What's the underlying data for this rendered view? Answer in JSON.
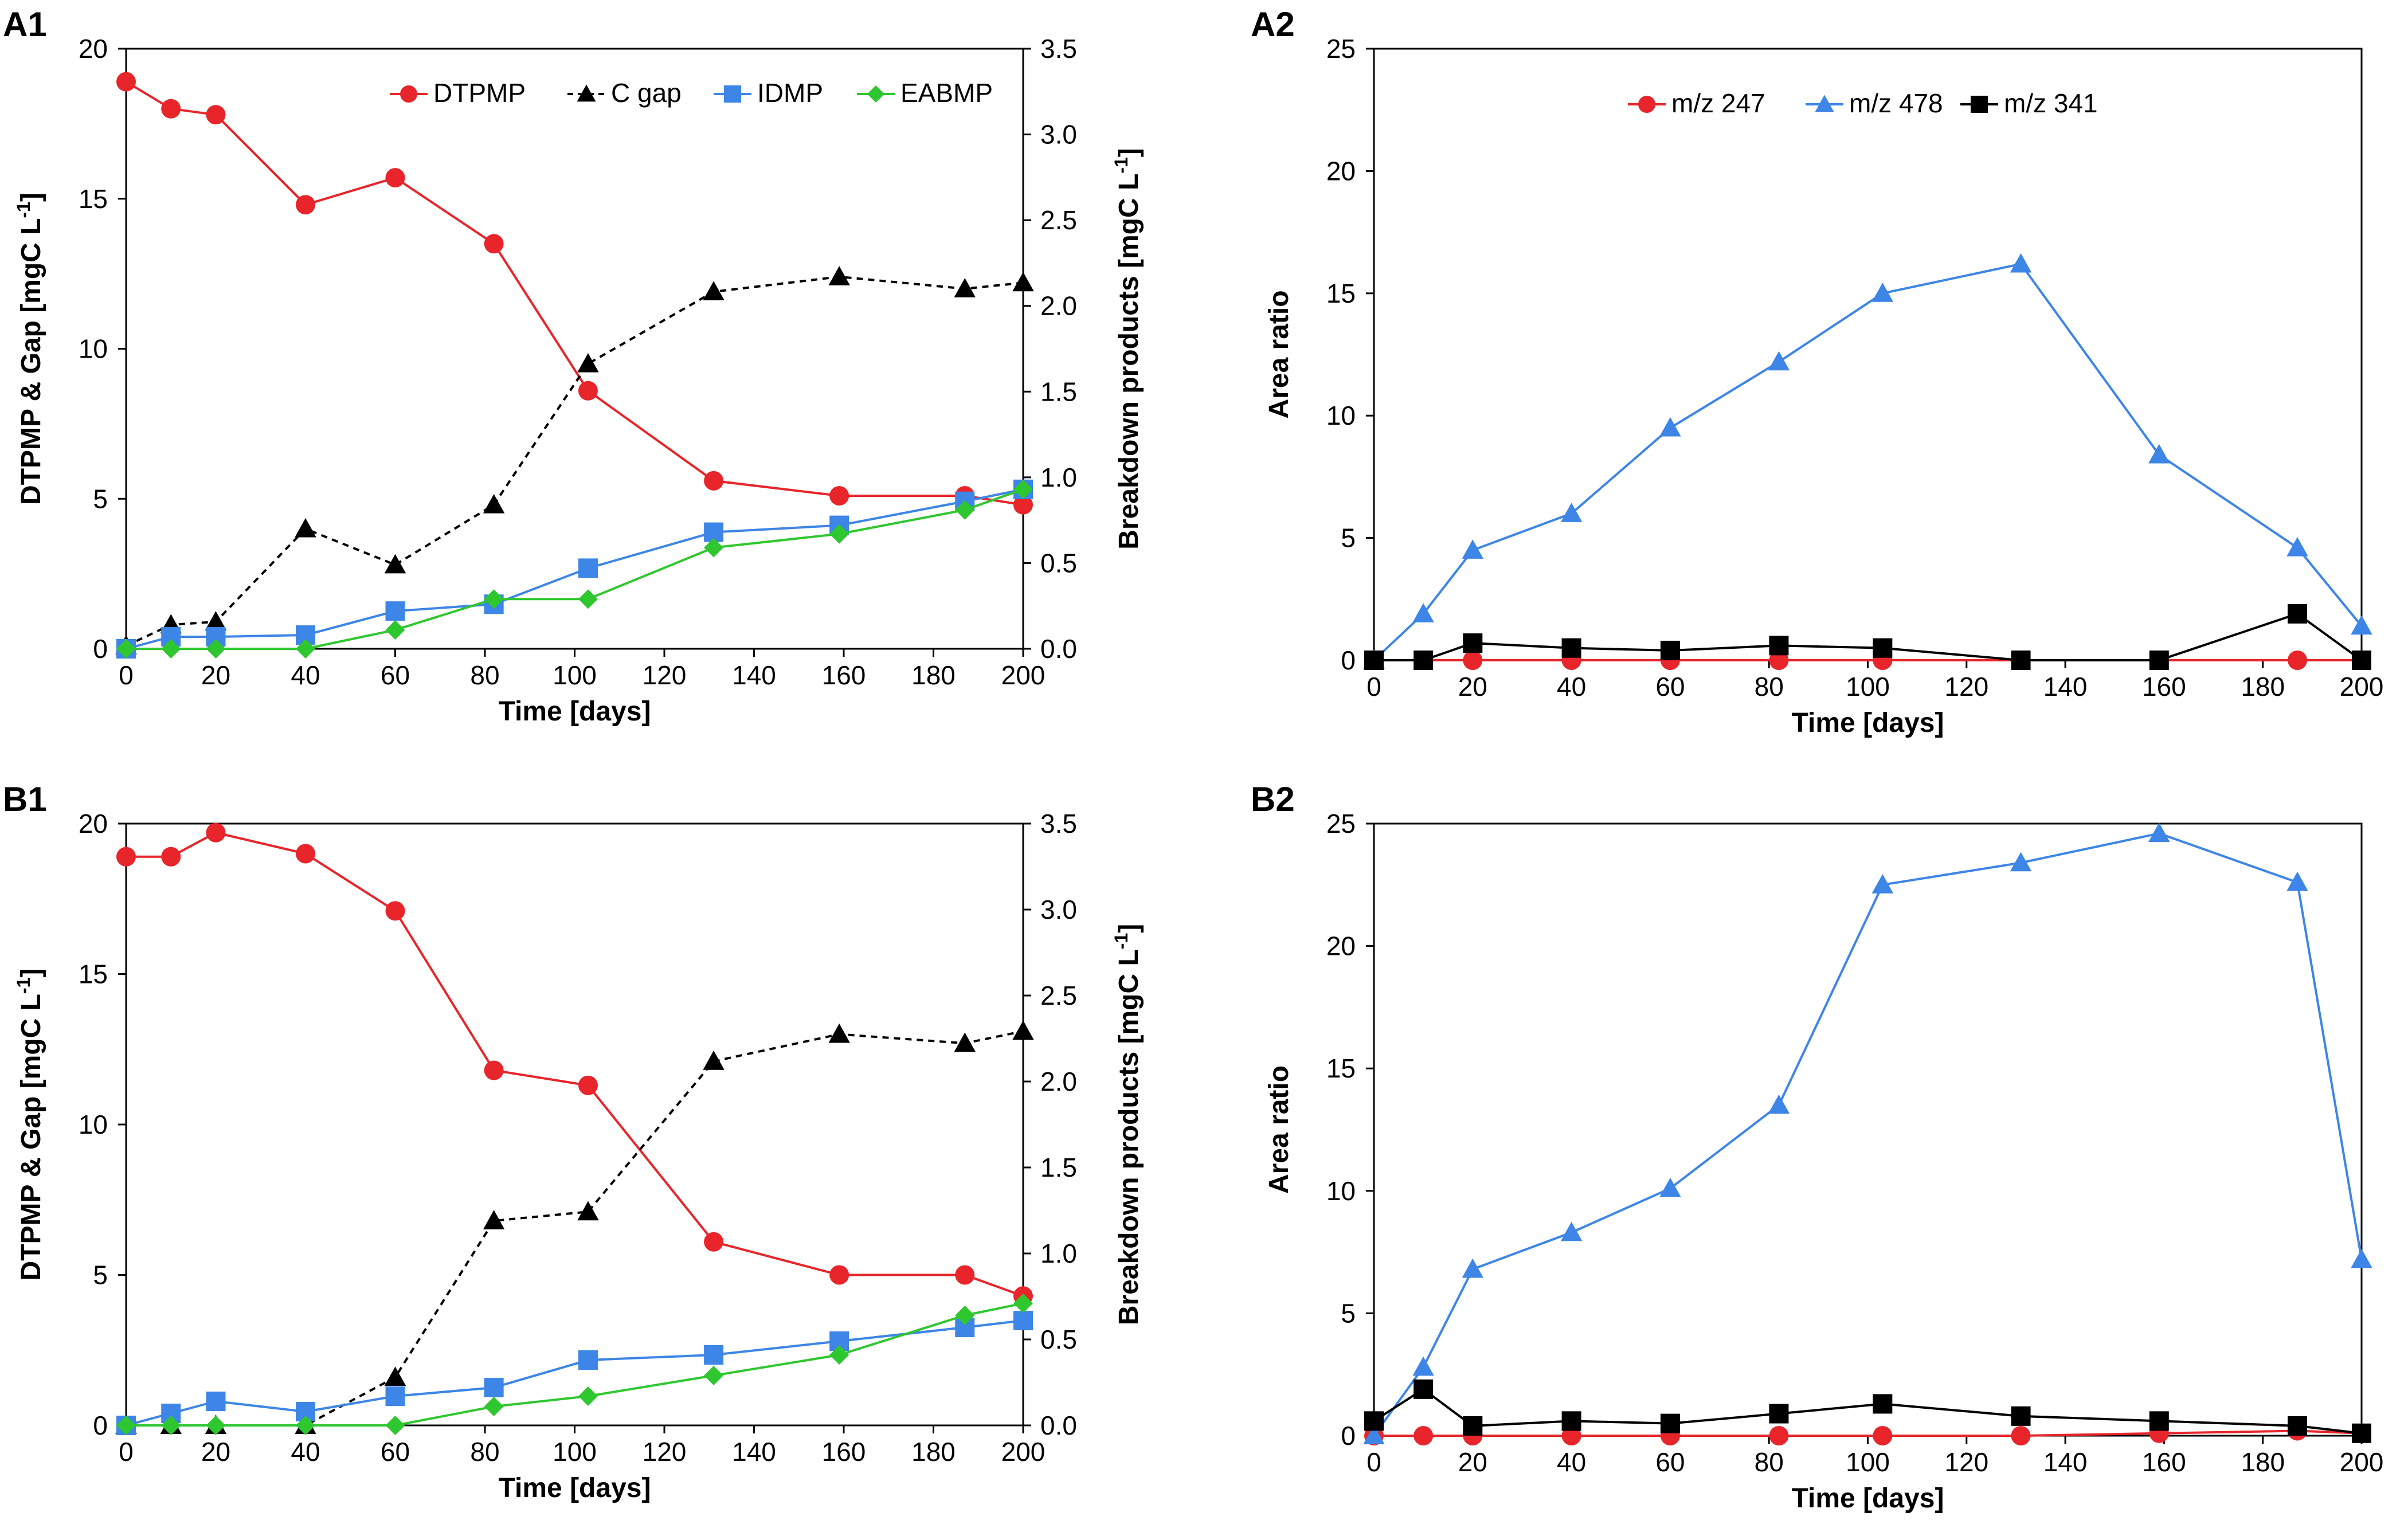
{
  "figure": {
    "panels": [
      "A1",
      "A2",
      "B1",
      "B2"
    ]
  },
  "chart_data": [
    {
      "id": "A1",
      "panel_label": "A1",
      "type": "line",
      "xlabel": "Time [days]",
      "ylabel": "DTPMP & Gap [mgC L",
      "ylabel_sup": "-1",
      "ylabel_close": "]",
      "y2label": "Breakdown products [mgC L",
      "y2label_sup": "-1",
      "y2label_close": "]",
      "xlim": [
        0,
        200
      ],
      "xticks": [
        0,
        20,
        40,
        60,
        80,
        100,
        120,
        140,
        160,
        180,
        200
      ],
      "ylim": [
        0,
        20
      ],
      "yticks": [
        0,
        5,
        10,
        15,
        20
      ],
      "y2lim": [
        0,
        3.5
      ],
      "y2ticks": [
        "0.0",
        "0.5",
        "1.0",
        "1.5",
        "2.0",
        "2.5",
        "3.0",
        "3.5"
      ],
      "legend_position": "top",
      "series": [
        {
          "name": "DTPMP",
          "axis": "left",
          "color": "#e8252a",
          "marker": "circle",
          "dash": false,
          "x": [
            0,
            10,
            20,
            40,
            60,
            82,
            103,
            131,
            159,
            187,
            200
          ],
          "y": [
            18.9,
            18.0,
            17.8,
            14.8,
            15.7,
            13.5,
            8.6,
            5.6,
            5.1,
            5.1,
            4.8
          ]
        },
        {
          "name": "C gap",
          "axis": "left",
          "color": "#000000",
          "marker": "triangle",
          "dash": true,
          "x": [
            0,
            10,
            20,
            40,
            60,
            82,
            103,
            131,
            159,
            187,
            200
          ],
          "y": [
            0.1,
            0.8,
            0.9,
            4.0,
            2.8,
            4.8,
            9.5,
            11.9,
            12.4,
            12.0,
            12.2
          ]
        },
        {
          "name": "IDMP",
          "axis": "right",
          "color": "#3d85e6",
          "marker": "square",
          "dash": false,
          "x": [
            0,
            10,
            20,
            40,
            60,
            82,
            103,
            131,
            159,
            187,
            200
          ],
          "y": [
            0.0,
            0.07,
            0.07,
            0.08,
            0.22,
            0.26,
            0.47,
            0.68,
            0.72,
            0.86,
            0.93
          ]
        },
        {
          "name": "EABMP",
          "axis": "right",
          "color": "#2fc72f",
          "marker": "diamond",
          "dash": false,
          "x": [
            0,
            10,
            20,
            40,
            60,
            82,
            103,
            131,
            159,
            187,
            200
          ],
          "y": [
            0.0,
            0.0,
            0.0,
            0.0,
            0.11,
            0.29,
            0.29,
            0.59,
            0.67,
            0.81,
            0.93
          ]
        }
      ]
    },
    {
      "id": "A2",
      "panel_label": "A2",
      "type": "line",
      "xlabel": "Time [days]",
      "ylabel": "Area ratio",
      "xlim": [
        0,
        200
      ],
      "xticks": [
        0,
        20,
        40,
        60,
        80,
        100,
        120,
        140,
        160,
        180,
        200
      ],
      "ylim": [
        0,
        25
      ],
      "yticks": [
        0,
        5,
        10,
        15,
        20,
        25
      ],
      "legend_position": "top",
      "series": [
        {
          "name": "m/z 247",
          "color": "#e8252a",
          "marker": "circle",
          "x": [
            0,
            10,
            20,
            40,
            60,
            82,
            103,
            131,
            159,
            187,
            200
          ],
          "y": [
            0,
            0,
            0,
            0,
            0,
            0,
            0,
            0,
            0,
            0,
            0
          ]
        },
        {
          "name": "m/z 478",
          "color": "#3d85e6",
          "marker": "triangle",
          "x": [
            0,
            10,
            20,
            40,
            60,
            82,
            103,
            131,
            159,
            187,
            200
          ],
          "y": [
            0,
            1.9,
            4.5,
            6.0,
            9.5,
            12.2,
            15.0,
            16.2,
            8.4,
            4.6,
            1.4
          ]
        },
        {
          "name": "m/z 341",
          "color": "#000000",
          "marker": "square",
          "x": [
            0,
            10,
            20,
            40,
            60,
            82,
            103,
            131,
            159,
            187,
            200
          ],
          "y": [
            0,
            0,
            0.7,
            0.5,
            0.4,
            0.6,
            0.5,
            0,
            0,
            1.9,
            0
          ]
        }
      ]
    },
    {
      "id": "B1",
      "panel_label": "B1",
      "type": "line",
      "xlabel": "Time [days]",
      "ylabel": "DTPMP & Gap [mgC L",
      "ylabel_sup": "-1",
      "ylabel_close": "]",
      "y2label": "Breakdown products [mgC L",
      "y2label_sup": "-1",
      "y2label_close": "]",
      "xlim": [
        0,
        200
      ],
      "xticks": [
        0,
        20,
        40,
        60,
        80,
        100,
        120,
        140,
        160,
        180,
        200
      ],
      "ylim": [
        0,
        20
      ],
      "yticks": [
        0,
        5,
        10,
        15,
        20
      ],
      "y2lim": [
        0,
        3.5
      ],
      "y2ticks": [
        "0.0",
        "0.5",
        "1.0",
        "1.5",
        "2.0",
        "2.5",
        "3.0",
        "3.5"
      ],
      "series": [
        {
          "name": "DTPMP",
          "axis": "left",
          "color": "#e8252a",
          "marker": "circle",
          "dash": false,
          "x": [
            0,
            10,
            20,
            40,
            60,
            82,
            103,
            131,
            159,
            187,
            200
          ],
          "y": [
            18.9,
            18.9,
            19.7,
            19.0,
            17.1,
            11.8,
            11.3,
            6.1,
            5.0,
            5.0,
            4.3
          ]
        },
        {
          "name": "C gap",
          "axis": "left",
          "color": "#000000",
          "marker": "triangle",
          "dash": true,
          "x": [
            0,
            10,
            20,
            40,
            60,
            82,
            103,
            131,
            159,
            187,
            200
          ],
          "y": [
            0.0,
            0.0,
            0.0,
            0.0,
            1.6,
            6.8,
            7.1,
            12.1,
            13.0,
            12.7,
            13.1
          ]
        },
        {
          "name": "IDMP",
          "axis": "right",
          "color": "#3d85e6",
          "marker": "square",
          "dash": false,
          "x": [
            0,
            10,
            20,
            40,
            60,
            82,
            103,
            131,
            159,
            187,
            200
          ],
          "y": [
            0.0,
            0.07,
            0.14,
            0.08,
            0.17,
            0.22,
            0.38,
            0.41,
            0.49,
            0.57,
            0.61
          ]
        },
        {
          "name": "EABMP",
          "axis": "right",
          "color": "#2fc72f",
          "marker": "diamond",
          "dash": false,
          "x": [
            0,
            10,
            20,
            40,
            60,
            82,
            103,
            131,
            159,
            187,
            200
          ],
          "y": [
            0.0,
            0.0,
            0.0,
            0.0,
            0.0,
            0.11,
            0.17,
            0.29,
            0.41,
            0.64,
            0.71
          ]
        }
      ]
    },
    {
      "id": "B2",
      "panel_label": "B2",
      "type": "line",
      "xlabel": "Time [days]",
      "ylabel": "Area ratio",
      "xlim": [
        0,
        200
      ],
      "xticks": [
        0,
        20,
        40,
        60,
        80,
        100,
        120,
        140,
        160,
        180,
        200
      ],
      "ylim": [
        0,
        25
      ],
      "yticks": [
        0,
        5,
        10,
        15,
        20,
        25
      ],
      "series": [
        {
          "name": "m/z 247",
          "color": "#e8252a",
          "marker": "circle",
          "x": [
            0,
            10,
            20,
            40,
            60,
            82,
            103,
            131,
            159,
            187,
            200
          ],
          "y": [
            0,
            0,
            0,
            0,
            0,
            0,
            0,
            0,
            0.1,
            0.2,
            0.1
          ]
        },
        {
          "name": "m/z 478",
          "color": "#3d85e6",
          "marker": "triangle",
          "x": [
            0,
            10,
            20,
            40,
            60,
            82,
            103,
            131,
            159,
            187,
            200
          ],
          "y": [
            0,
            2.8,
            6.8,
            8.3,
            10.1,
            13.5,
            22.5,
            23.4,
            24.6,
            22.6,
            7.2
          ]
        },
        {
          "name": "m/z 341",
          "color": "#000000",
          "marker": "square",
          "x": [
            0,
            10,
            20,
            40,
            60,
            82,
            103,
            131,
            159,
            187,
            200
          ],
          "y": [
            0.6,
            1.9,
            0.4,
            0.6,
            0.5,
            0.9,
            1.3,
            0.8,
            0.6,
            0.4,
            0.1
          ]
        }
      ]
    }
  ]
}
